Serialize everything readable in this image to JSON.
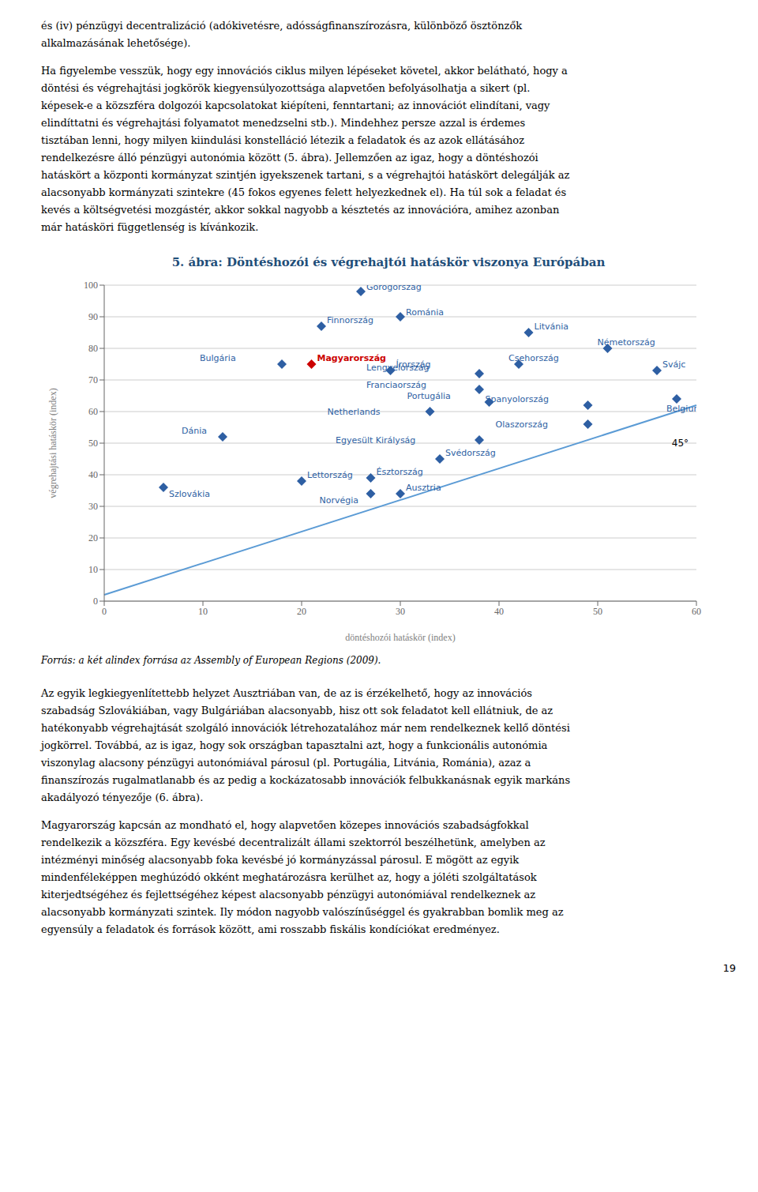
{
  "top_text_paragraphs": [
    [
      "és (iv) pénzügyi decentralizáció (adókivetésre, adósságfinanszírozásra, különböző ösztönzők",
      "alkalmazásának lehetősége)."
    ],
    [
      "Ha figyelembe vesszük, hogy egy innovációs ciklus milyen lépéseket követel, akkor belátható, hogy a",
      "döntési és végrehajtási jogkörök kiegyensúlyozottsága alapvetően befolyásolhatja a sikert (pl.",
      "képesek-e a közszféra dolgozói kapcsolatokat kiépíteni, fenntartani; az innovációt elindítani, vagy",
      "elindíttatni és végrehajtási folyamatot menedzselni stb.). Mindehhez persze azzal is érdemes",
      "tisztában lenni, hogy milyen kiindulási konstelláció létezik a feladatok és az azok ellátásához",
      "rendelkezésre álló pénzügyi autonómia között (5. ábra). Jellemzően az igaz, hogy a döntéshozói",
      "hatáskört a központi kormányzat szintjén igyekszenek tartani, s a végrehajtói hatáskört delegálják az",
      "alacsonyabb kormányzati szintekre (45 fokos egyenes felett helyezkednek el). Ha túl sok a feladat és",
      "kevés a költségvetési mozgástér, akkor sokkal nagyobb a késztetés az innovációra, amihez azonban",
      "már hatásköri függetlenség is kívánkozik."
    ]
  ],
  "chart_data": {
    "type": "scatter",
    "title": "5. ábra: Döntéshozói és végrehajtói hatáskör viszonya Európában",
    "title_color": "#1F4E79",
    "x_label": "döntéshozói hatáskör (index)",
    "y_label": "végrehajtási hatáskör (index)",
    "xlim": [
      0,
      60
    ],
    "ylim": [
      0,
      100
    ],
    "xticks": [
      0,
      10,
      20,
      30,
      40,
      50,
      60
    ],
    "yticks": [
      0,
      10,
      20,
      30,
      40,
      50,
      60,
      70,
      80,
      90,
      100
    ],
    "grid": "y",
    "marker": "diamond",
    "point_labels": [
      "Szlovákia",
      "Dánia",
      "Bulgária",
      "Magyarország",
      "Finnország",
      "Lettország",
      "Görögország",
      "Észtország",
      "Norvégia",
      "Írország",
      "Románia",
      "Ausztria",
      "Netherlands",
      "Svédország",
      "Egyesült Királyság",
      "Lengyelország",
      "Franciaország",
      "Portugália",
      "Csehország",
      "Litvánia",
      "Spanyolország",
      "Olaszország",
      "Németország",
      "Svájc",
      "Belgium"
    ],
    "x": [
      6,
      12,
      18,
      21,
      22,
      20,
      26,
      27,
      27,
      29,
      30,
      30,
      33,
      34,
      38,
      38,
      38,
      39,
      42,
      43,
      49,
      49,
      51,
      56,
      58
    ],
    "values": [
      36,
      52,
      75,
      75,
      87,
      38,
      98,
      39,
      34,
      73,
      90,
      34,
      60,
      45,
      51,
      72,
      67,
      63,
      75,
      85,
      62,
      56,
      80,
      73,
      64
    ],
    "colors": [
      "#2E5FA3",
      "#2E5FA3",
      "#2E5FA3",
      "#CC0000",
      "#2E5FA3",
      "#2E5FA3",
      "#2E5FA3",
      "#2E5FA3",
      "#2E5FA3",
      "#2E5FA3",
      "#2E5FA3",
      "#2E5FA3",
      "#2E5FA3",
      "#2E5FA3",
      "#2E5FA3",
      "#2E5FA3",
      "#2E5FA3",
      "#2E5FA3",
      "#2E5FA3",
      "#2E5FA3",
      "#2E5FA3",
      "#2E5FA3",
      "#2E5FA3",
      "#2E5FA3",
      "#2E5FA3"
    ],
    "reference_line": {
      "x": [
        0,
        60
      ],
      "y": [
        2,
        62
      ],
      "color": "#5B9BD5"
    },
    "annotations": [
      {
        "text": "45°",
        "x": 57.5,
        "y": 50
      }
    ]
  },
  "source": "Forrás: a két alindex forrása az Assembly of European Regions (2009).",
  "bottom_text_paragraphs": [
    [
      "Az egyik legkiegyenlítettebb helyzet Ausztriában van, de az is érzékelhető, hogy az innovációs",
      "szabadság Szlovákiában, vagy Bulgáriában alacsonyabb, hisz ott sok feladatot kell ellátniuk, de az",
      "hatékonyabb végrehajtását szolgáló innovációk létrehozatalához már nem rendelkeznek kellő döntési",
      "jogkörrel. Továbbá, az is igaz, hogy sok országban tapasztalni azt, hogy a funkcionális autonómia",
      "viszonylag alacsony pénzügyi autonómiával párosul (pl. Portugália, Litvánia, Románia), azaz a",
      "finanszírozás rugalmatlanabb és az pedig a kockázatosabb innovációk felbukkanásnak egyik markáns",
      "akadályozó tényezője (6. ábra)."
    ],
    [
      "Magyarország kapcsán az mondható el, hogy alapvetően közepes innovációs szabadságfokkal",
      "rendelkezik a közszféra. Egy kevésbé decentralizált állami szektorról beszélhetünk, amelyben az",
      "intézményi minőség alacsonyabb foka kevésbé jó kormányzással párosul. E mögött az egyik",
      "mindenféleképpen meghúzódó okként meghatározásra kerülhet az, hogy a jóléti szolgáltatások",
      "kiterjedtségéhez és fejlettségéhez képest alacsonyabb pénzügyi autonómiával rendelkeznek az",
      "alacsonyabb kormányzati szintek. Ily módon nagyobb valószínűséggel és gyakrabban bomlik meg az",
      "egyensúly a feladatok és források között, ami rosszabb fiskális kondíciókat eredményez."
    ]
  ],
  "page_number": "19"
}
